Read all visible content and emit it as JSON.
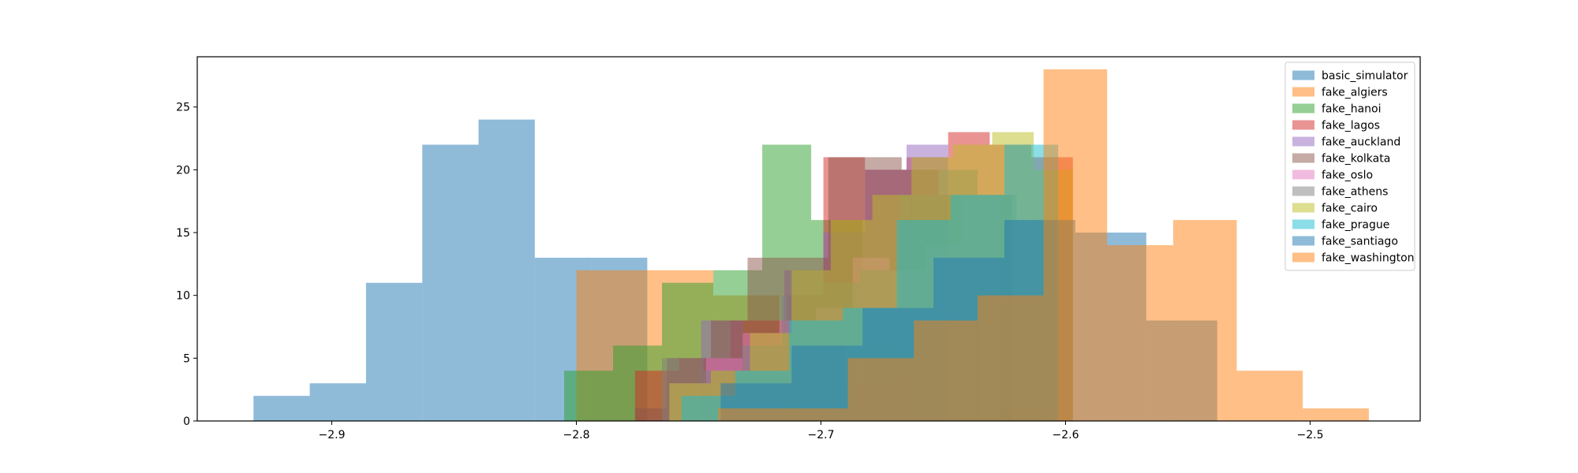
{
  "chart_data": {
    "type": "histogram",
    "title": "",
    "xlabel": "",
    "ylabel": "",
    "xlim": [
      -2.955,
      -2.455
    ],
    "ylim": [
      0,
      29
    ],
    "xticks": [
      -2.9,
      -2.8,
      -2.7,
      -2.6,
      -2.5
    ],
    "xtick_labels": [
      "−2.9",
      "−2.8",
      "−2.7",
      "−2.6",
      "−2.5"
    ],
    "yticks": [
      0,
      5,
      10,
      15,
      20,
      25
    ],
    "ytick_labels": [
      "0",
      "5",
      "10",
      "15",
      "20",
      "25"
    ],
    "grid": false,
    "legend_position": "upper right",
    "bar_alpha": 0.5,
    "series": [
      {
        "name": "basic_simulator",
        "color": "#1f77b4",
        "edges": [
          -2.932,
          -2.909,
          -2.886,
          -2.863,
          -2.84,
          -2.817,
          -2.794,
          -2.771
        ],
        "counts": [
          2,
          3,
          11,
          22,
          24,
          13,
          13
        ]
      },
      {
        "name": "fake_algiers",
        "color": "#ff7f0e",
        "edges": [
          -2.8,
          -2.771,
          -2.744,
          -2.717,
          -2.69,
          -2.663,
          -2.636,
          -2.609
        ],
        "counts": [
          12,
          12,
          10,
          6,
          3,
          2,
          1
        ]
      },
      {
        "name": "fake_hanoi",
        "color": "#2ca02c",
        "edges": [
          -2.805,
          -2.785,
          -2.765,
          -2.744,
          -2.724,
          -2.704,
          -2.683,
          -2.663
        ],
        "counts": [
          4,
          6,
          11,
          12,
          22,
          16,
          6
        ]
      },
      {
        "name": "fake_lagos",
        "color": "#d62728",
        "edges": [
          -2.776,
          -2.758,
          -2.737,
          -2.714,
          -2.699,
          -2.682,
          -2.665,
          -2.648,
          -2.631,
          -2.614,
          -2.597
        ],
        "counts": [
          4,
          5,
          8,
          10,
          21,
          20,
          21,
          23,
          22,
          21,
          19
        ]
      },
      {
        "name": "fake_auckland",
        "color": "#9467bd",
        "edges": [
          -2.749,
          -2.732,
          -2.715,
          -2.699,
          -2.682,
          -2.665,
          -2.648
        ],
        "counts": [
          8,
          6,
          12,
          15,
          20,
          22,
          23
        ]
      },
      {
        "name": "fake_kolkata",
        "color": "#8c564b",
        "edges": [
          -2.776,
          -2.763,
          -2.745,
          -2.73,
          -2.712,
          -2.697,
          -2.682,
          -2.667,
          -2.652,
          -2.637,
          -2.622
        ],
        "counts": [
          1,
          5,
          8,
          13,
          13,
          21,
          21,
          20,
          18,
          18,
          16
        ]
      },
      {
        "name": "fake_oslo",
        "color": "#e377c2",
        "edges": [
          -2.762,
          -2.747,
          -2.732,
          -2.717,
          -2.702,
          -2.687,
          -2.672,
          -2.657,
          -2.642,
          -2.627
        ],
        "counts": [
          3,
          5,
          7,
          8,
          9,
          13,
          12,
          14,
          18,
          21
        ]
      },
      {
        "name": "fake_athens",
        "color": "#7f7f7f",
        "edges": [
          -2.765,
          -2.748,
          -2.732,
          -2.716,
          -2.7,
          -2.684,
          -2.668,
          -2.652,
          -2.636,
          -2.62,
          -2.604
        ],
        "counts": [
          5,
          4,
          6,
          10,
          11,
          12,
          18,
          20,
          18,
          16,
          14
        ]
      },
      {
        "name": "fake_cairo",
        "color": "#bcbd22",
        "edges": [
          -2.762,
          -2.745,
          -2.729,
          -2.712,
          -2.696,
          -2.679,
          -2.663,
          -2.646,
          -2.63,
          -2.613,
          -2.597
        ],
        "counts": [
          3,
          4,
          7,
          12,
          16,
          18,
          21,
          22,
          23,
          20,
          15
        ]
      },
      {
        "name": "fake_prague",
        "color": "#17becf",
        "edges": [
          -2.757,
          -2.735,
          -2.713,
          -2.691,
          -2.669,
          -2.647,
          -2.625,
          -2.603
        ],
        "counts": [
          2,
          4,
          8,
          9,
          16,
          18,
          22
        ]
      },
      {
        "name": "fake_santiago",
        "color": "#1f77b4",
        "edges": [
          -2.741,
          -2.712,
          -2.683,
          -2.654,
          -2.625,
          -2.596,
          -2.567,
          -2.538
        ],
        "counts": [
          3,
          6,
          9,
          13,
          16,
          15,
          8
        ]
      },
      {
        "name": "fake_washington",
        "color": "#ff7f0e",
        "edges": [
          -2.742,
          -2.689,
          -2.662,
          -2.636,
          -2.609,
          -2.583,
          -2.556,
          -2.53,
          -2.503,
          -2.476
        ],
        "counts": [
          1,
          5,
          8,
          10,
          28,
          14,
          16,
          4,
          1
        ]
      }
    ]
  }
}
